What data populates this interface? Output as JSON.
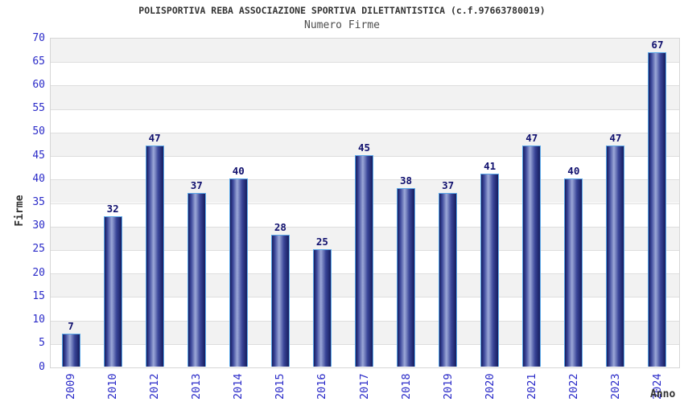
{
  "chart_data": {
    "type": "bar",
    "title": "POLISPORTIVA REBA ASSOCIAZIONE SPORTIVA DILETTANTISTICA (c.f.97663780019)",
    "subtitle": "Numero Firme",
    "xlabel": "Anno",
    "ylabel": "Firme",
    "categories": [
      "2009",
      "2010",
      "2012",
      "2013",
      "2014",
      "2015",
      "2016",
      "2017",
      "2018",
      "2019",
      "2020",
      "2021",
      "2022",
      "2023",
      "2024"
    ],
    "values": [
      7,
      32,
      47,
      37,
      40,
      28,
      25,
      45,
      38,
      37,
      41,
      47,
      40,
      47,
      67
    ],
    "ylim": [
      0,
      70
    ],
    "ytick_step": 5,
    "grid": "horizontal-bands",
    "legend": "none",
    "colors": {
      "title": "#333333",
      "subtitle": "#4d4d4d",
      "axis_title": "#333333",
      "tick_label": "#2a2ac8",
      "value_label": "#10106e",
      "bar_edge_dark": "#161c5e",
      "bar_mid": "#3a4699",
      "bar_light": "#9ca8d8",
      "bar_border": "#5aa7e8",
      "band_gray": "#f2f2f2",
      "band_white": "#ffffff",
      "grid_line": "#dedede",
      "plot_border": "#d6d6d6"
    }
  }
}
